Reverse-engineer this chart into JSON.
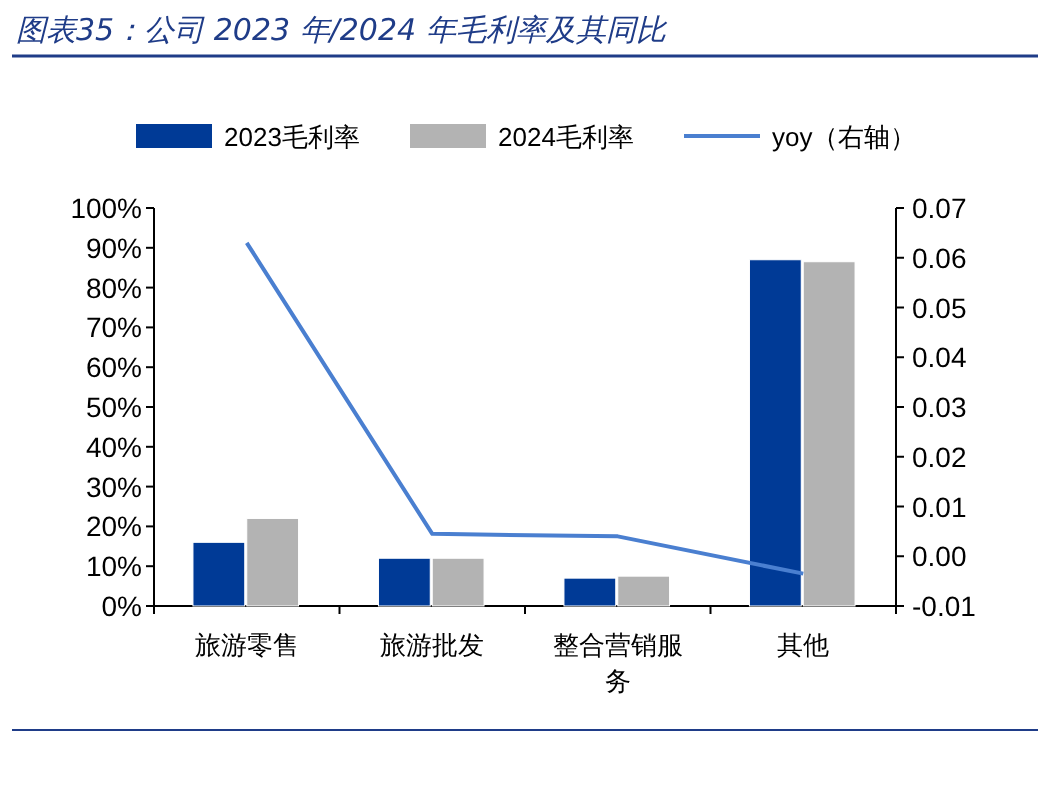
{
  "chart_data": {
    "type": "bar",
    "title": "图表35：公司 2023 年/2024 年毛利率及其同比",
    "categories": [
      "旅游零售",
      "旅游批发",
      "整合营销服务",
      "其他"
    ],
    "series": [
      {
        "name": "2023毛利率",
        "color": "#003a96",
        "values": [
          16,
          12,
          7,
          87
        ]
      },
      {
        "name": "2024毛利率",
        "color": "#b3b3b3",
        "values": [
          22,
          12,
          7.5,
          86.5
        ]
      },
      {
        "name": "yoy（右轴）",
        "type": "line",
        "axis": "y2",
        "color": "#4a7fd0",
        "values": [
          0.063,
          0.0045,
          0.004,
          -0.0035
        ]
      }
    ],
    "ylim": [
      0,
      100
    ],
    "yticks": [
      {
        "value": 0,
        "label": "0%"
      },
      {
        "value": 10,
        "label": "10%"
      },
      {
        "value": 20,
        "label": "20%"
      },
      {
        "value": 30,
        "label": "30%"
      },
      {
        "value": 40,
        "label": "40%"
      },
      {
        "value": 50,
        "label": "50%"
      },
      {
        "value": 60,
        "label": "60%"
      },
      {
        "value": 70,
        "label": "70%"
      },
      {
        "value": 80,
        "label": "80%"
      },
      {
        "value": 90,
        "label": "90%"
      },
      {
        "value": 100,
        "label": "100%"
      }
    ],
    "y2lim": [
      -0.01,
      0.07
    ],
    "y2ticks": [
      -0.01,
      {
        "value": 0,
        "label": "0.00"
      },
      0.01,
      0.02,
      0.03,
      0.04,
      0.05,
      0.06,
      0.07
    ],
    "legend": "top",
    "grid": false
  }
}
